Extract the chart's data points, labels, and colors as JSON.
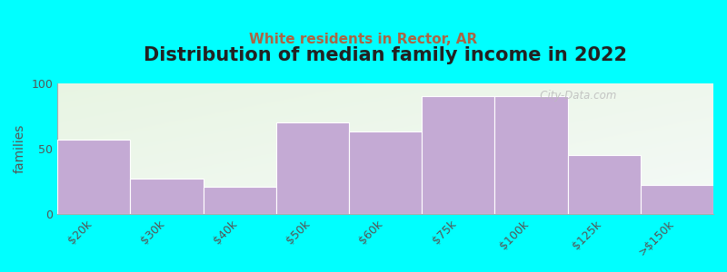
{
  "title": "Distribution of median family income in 2022",
  "subtitle": "White residents in Rector, AR",
  "ylabel": "families",
  "categories": [
    "$20k",
    "$30k",
    "$40k",
    "$50k",
    "$60k",
    "$75k",
    "$100k",
    "$125k",
    ">$150k"
  ],
  "values": [
    57,
    27,
    21,
    70,
    63,
    90,
    90,
    45,
    22
  ],
  "bar_color": "#c4aad4",
  "bar_edge_color": "#ffffff",
  "background_color": "#00ffff",
  "ylim": [
    0,
    100
  ],
  "yticks": [
    0,
    50,
    100
  ],
  "title_fontsize": 15,
  "subtitle_fontsize": 11,
  "ylabel_fontsize": 10,
  "tick_fontsize": 9,
  "watermark": "   City-Data.com"
}
